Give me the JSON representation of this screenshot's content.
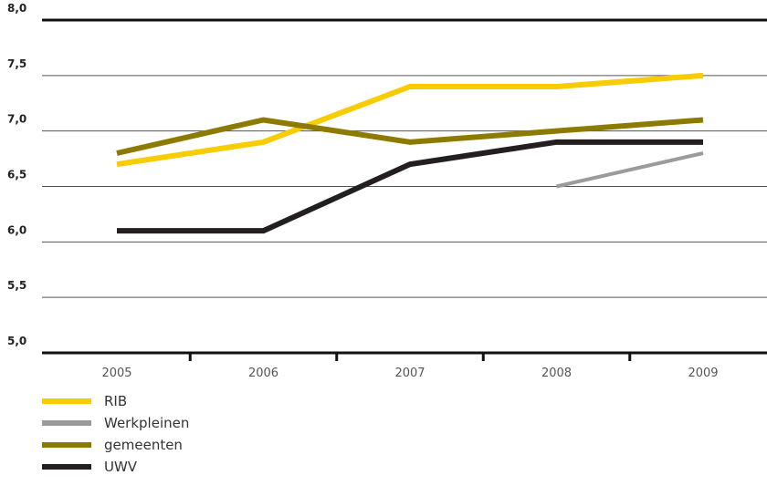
{
  "chart_data": {
    "type": "line",
    "title": "",
    "xlabel": "",
    "ylabel": "",
    "x": [
      "2005",
      "2006",
      "2007",
      "2008",
      "2009"
    ],
    "ylim": [
      5.0,
      8.0
    ],
    "yticks": [
      "5,0",
      "5,5",
      "6,0",
      "6,5",
      "7,0",
      "7,5",
      "8,0"
    ],
    "grid": true,
    "legend": "bottom-left",
    "series": [
      {
        "name": "RIB",
        "color": "#f7cc00",
        "values": [
          6.7,
          6.9,
          7.4,
          7.4,
          7.5
        ]
      },
      {
        "name": "Werkpleinen",
        "color": "#9b9b9b",
        "values": [
          null,
          null,
          null,
          6.5,
          6.8
        ]
      },
      {
        "name": "gemeenten",
        "color": "#8c7b00",
        "values": [
          6.8,
          7.1,
          6.9,
          7.0,
          7.1
        ]
      },
      {
        "name": "UWV",
        "color": "#231f20",
        "values": [
          6.1,
          6.1,
          6.7,
          6.9,
          6.9
        ]
      }
    ]
  }
}
